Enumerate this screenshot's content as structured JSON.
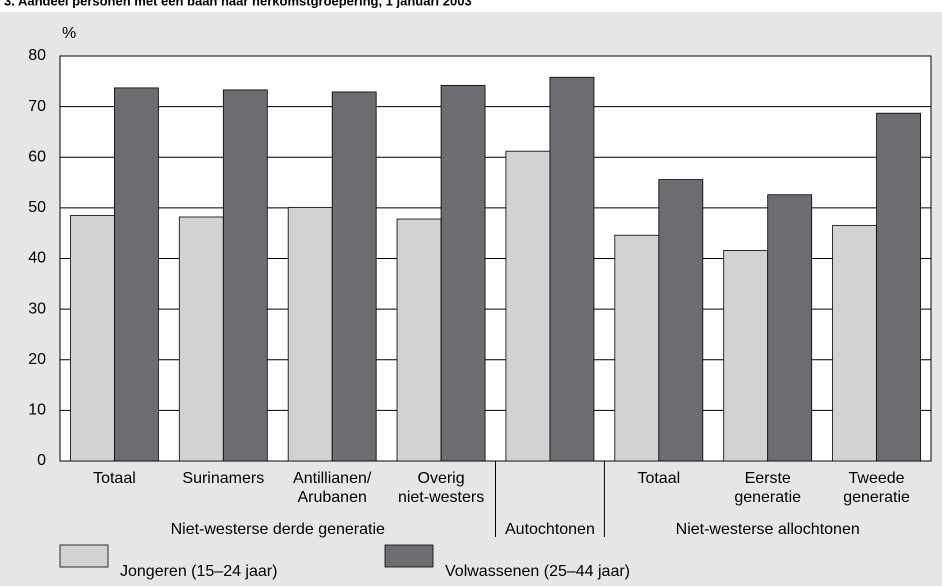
{
  "chart_data": {
    "type": "bar",
    "title": "3. Aandeel personen met een baan naar herkomstgroepering, 1 januari 2003",
    "y_label": "%",
    "categories": [
      "Totaal",
      "Surinamers",
      "Antillianen/\nArubanen",
      "Overig\nniet-westers",
      null,
      "Totaal",
      "Eerste\ngeneratie",
      "Tweede\ngeneratie"
    ],
    "groups": [
      {
        "label": "Niet-westerse derde generatie",
        "start": 0,
        "end": 3
      },
      {
        "label": "Autochtonen",
        "start": 4,
        "end": 4
      },
      {
        "label": "Niet-westerse allochtonen",
        "start": 5,
        "end": 7
      }
    ],
    "series": [
      {
        "name": "Jongeren (15–24 jaar)",
        "color": "#d2d2d2",
        "values": [
          48.5,
          48.2,
          50.1,
          47.8,
          61.2,
          44.6,
          41.6,
          46.5
        ]
      },
      {
        "name": "Volwassenen (25–44 jaar)",
        "color": "#6e6b71",
        "values": [
          73.7,
          73.3,
          72.9,
          74.2,
          75.8,
          55.6,
          52.6,
          68.7
        ]
      }
    ],
    "ylim": [
      0,
      80
    ],
    "yticks": [
      0,
      10,
      20,
      30,
      40,
      50,
      60,
      70,
      80
    ],
    "grid": true
  }
}
